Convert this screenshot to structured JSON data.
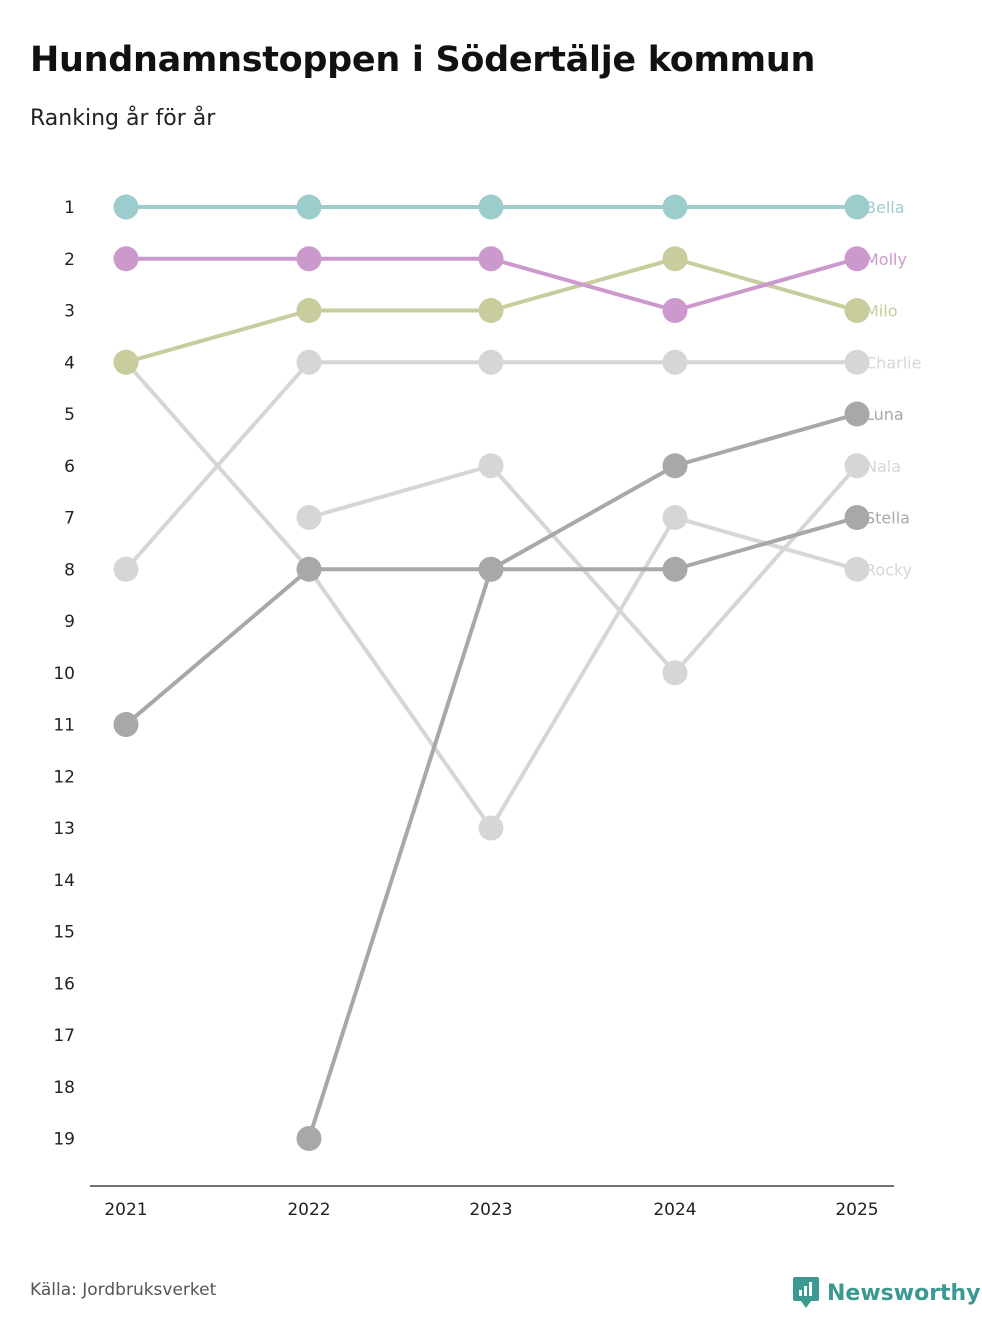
{
  "title": "Hundnamnstoppen i Södertälje kommun",
  "subtitle": "Ranking år för år",
  "source": "Källa: Jordbruksverket",
  "brand": "Newsworthy",
  "brand_color": "#3a9a92",
  "chart_data": {
    "type": "line",
    "title": "Hundnamnstoppen i Södertälje kommun",
    "subtitle": "Ranking år för år",
    "x": [
      "2021",
      "2022",
      "2023",
      "2024",
      "2025"
    ],
    "ylim": [
      1,
      19
    ],
    "y_ticks": [
      "1",
      "2",
      "3",
      "4",
      "5",
      "6",
      "7",
      "8",
      "9",
      "10",
      "11",
      "12",
      "13",
      "14",
      "15",
      "16",
      "17",
      "18",
      "19"
    ],
    "y_reversed": true,
    "series": [
      {
        "name": "Rocky",
        "color": "#d6d6d6",
        "values": [
          4,
          8,
          13,
          7,
          8
        ]
      },
      {
        "name": "Nala",
        "color": "#d6d6d6",
        "values": [
          null,
          7,
          6,
          10,
          6
        ]
      },
      {
        "name": "Charlie",
        "color": "#d6d6d6",
        "values": [
          8,
          4,
          4,
          4,
          4
        ]
      },
      {
        "name": "Stella",
        "color": "#a8a8a8",
        "values": [
          11,
          8,
          8,
          8,
          7
        ]
      },
      {
        "name": "Luna",
        "color": "#a8a8a8",
        "values": [
          null,
          19,
          8,
          6,
          5
        ]
      },
      {
        "name": "Milo",
        "color": "#c9cc9c",
        "values": [
          4,
          3,
          3,
          2,
          3
        ]
      },
      {
        "name": "Molly",
        "color": "#cc99cc",
        "values": [
          2,
          2,
          2,
          3,
          2
        ]
      },
      {
        "name": "Bella",
        "color": "#9ccccc",
        "values": [
          1,
          1,
          1,
          1,
          1
        ]
      }
    ]
  }
}
